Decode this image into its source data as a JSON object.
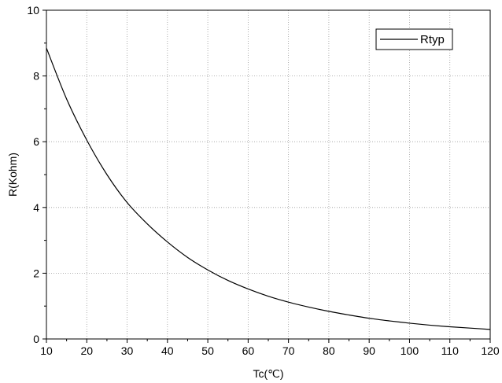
{
  "chart_data": {
    "type": "line",
    "title": "",
    "xlabel": "Tc(℃)",
    "ylabel": "R(Kohm)",
    "xlim": [
      10,
      120
    ],
    "ylim": [
      0,
      10
    ],
    "xticks": [
      10,
      20,
      30,
      40,
      50,
      60,
      70,
      80,
      90,
      100,
      110,
      120
    ],
    "yticks": [
      0,
      2,
      4,
      6,
      8,
      10
    ],
    "grid": true,
    "legend_position": "top-right",
    "series": [
      {
        "name": "Rtyp",
        "color": "#000000",
        "x": [
          10,
          15,
          20,
          25,
          30,
          35,
          40,
          45,
          50,
          55,
          60,
          65,
          70,
          75,
          80,
          85,
          90,
          95,
          100,
          105,
          110,
          115,
          120
        ],
        "y": [
          8.85,
          7.3,
          6.05,
          5.0,
          4.15,
          3.5,
          2.95,
          2.48,
          2.1,
          1.78,
          1.52,
          1.3,
          1.12,
          0.97,
          0.84,
          0.73,
          0.63,
          0.55,
          0.48,
          0.42,
          0.37,
          0.33,
          0.29
        ]
      }
    ]
  }
}
